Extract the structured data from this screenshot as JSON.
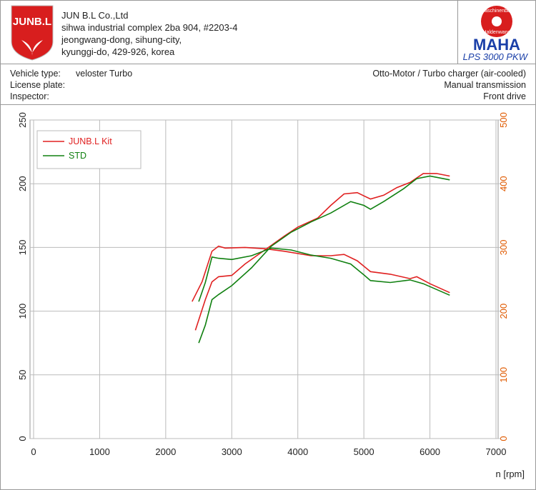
{
  "header": {
    "logo": "JUNB.L",
    "company": [
      "JUN B.L Co.,Ltd",
      "sihwa industrial complex 2ba 904, #2203-4",
      "jeongwang-dong, sihung-city,",
      "kyunggi-do, 429-926, korea"
    ],
    "brand_top": "Maschinenbau",
    "brand_bottom": "Haldenwang",
    "brand": "MAHA",
    "model": "LPS 3000 PKW"
  },
  "vehicle": {
    "left": [
      [
        "Vehicle type:",
        "veloster Turbo"
      ],
      [
        "License plate:"
      ],
      [
        "Inspector:"
      ]
    ],
    "right": [
      "Otto-Motor / Turbo charger (air-cooled)",
      "Manual transmission",
      "Front drive"
    ]
  },
  "chart_data": {
    "type": "line",
    "xlabel": "n [rpm]",
    "xlim": [
      0,
      7000
    ],
    "xticks": [
      0,
      1000,
      2000,
      3000,
      4000,
      5000,
      6000,
      7000
    ],
    "ylim": [
      0,
      250
    ],
    "yticks": [
      0,
      50,
      100,
      150,
      200,
      250
    ],
    "y2lim": [
      0,
      500
    ],
    "y2ticks": [
      0,
      100,
      200,
      300,
      400,
      500
    ],
    "y2color": "#e05a00",
    "grid": true,
    "legend": "upper left",
    "series": [
      {
        "name": "JUNB.L Kit",
        "color": "#e02020",
        "power": {
          "x": [
            2450,
            2600,
            2700,
            2800,
            3000,
            3200,
            3500,
            3800,
            4000,
            4300,
            4500,
            4700,
            4900,
            5100,
            5300,
            5500,
            5700,
            5900,
            6100,
            6300
          ],
          "values": [
            85,
            109,
            123,
            127,
            128,
            137,
            148,
            159,
            166,
            173,
            183,
            192,
            193,
            188,
            191,
            197,
            201,
            208,
            208,
            206
          ]
        },
        "torque": {
          "axis": "y2",
          "x": [
            2400,
            2550,
            2700,
            2800,
            2900,
            3200,
            3500,
            3800,
            4200,
            4500,
            4700,
            4900,
            5100,
            5400,
            5700,
            5800,
            6000,
            6300
          ],
          "values": [
            215,
            246,
            294,
            302,
            299,
            300,
            298,
            294,
            287,
            287,
            289,
            279,
            262,
            258,
            251,
            254,
            243,
            229
          ]
        }
      },
      {
        "name": "STD",
        "color": "#108010",
        "power": {
          "x": [
            2500,
            2600,
            2700,
            2800,
            3000,
            3300,
            3600,
            3900,
            4200,
            4500,
            4800,
            5000,
            5100,
            5300,
            5600,
            5800,
            6000,
            6300
          ],
          "values": [
            75,
            89,
            109,
            113,
            120,
            134,
            151,
            162,
            170,
            177,
            186,
            183,
            180,
            186,
            196,
            204,
            206,
            203
          ]
        },
        "torque": {
          "axis": "y2",
          "x": [
            2500,
            2600,
            2700,
            2800,
            3000,
            3300,
            3600,
            3900,
            4200,
            4500,
            4800,
            5000,
            5100,
            5400,
            5700,
            5900,
            6300
          ],
          "values": [
            215,
            245,
            285,
            283,
            281,
            287,
            299,
            296,
            288,
            283,
            274,
            257,
            248,
            245,
            249,
            243,
            225
          ]
        }
      }
    ]
  }
}
